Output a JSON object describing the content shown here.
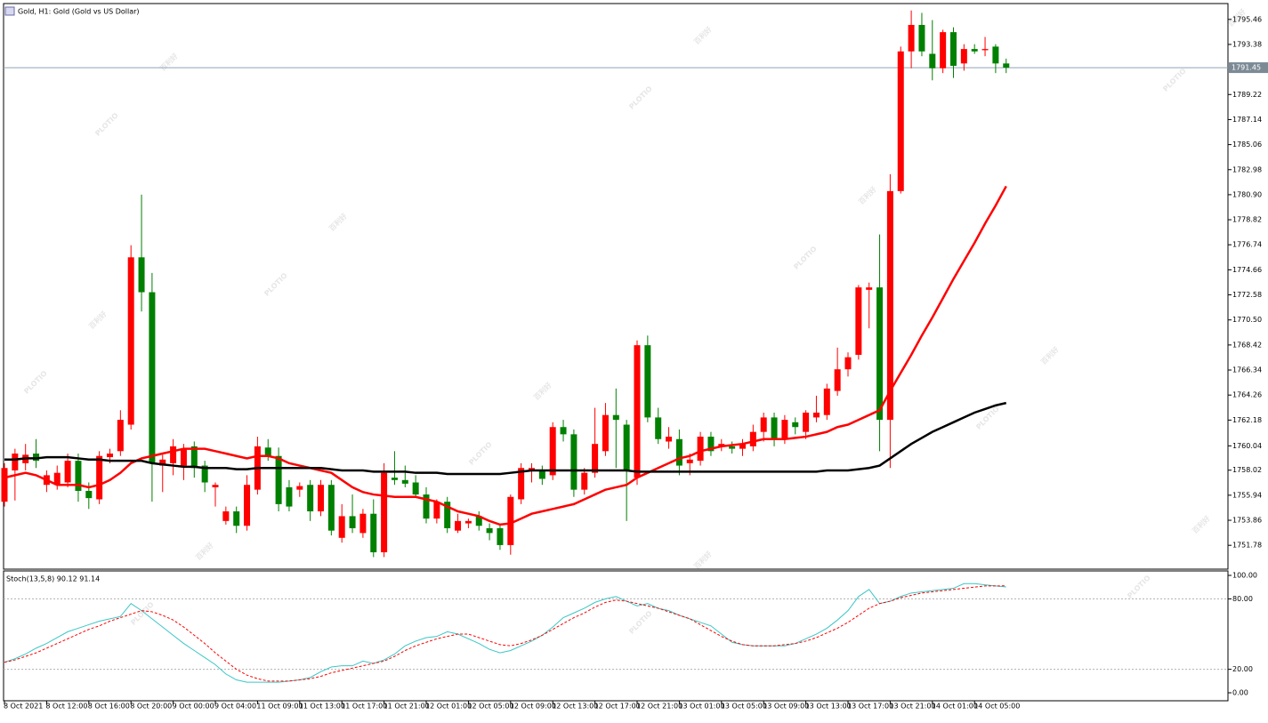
{
  "chart_data": [
    {
      "type": "candlestick",
      "title": "Gold, H1:  Gold (Gold vs US Dollar)",
      "categories": [
        "8 Oct 2021",
        null,
        null,
        null,
        "8 Oct 12:00",
        null,
        null,
        null,
        "8 Oct 16:00",
        null,
        null,
        null,
        "8 Oct 20:00",
        null,
        null,
        null,
        "9 Oct 00:00",
        null,
        null,
        null,
        "9 Oct 04:00",
        null,
        null,
        null,
        "11 Oct 09:00",
        null,
        null,
        null,
        "11 Oct 13:00",
        null,
        null,
        null,
        "11 Oct 17:00",
        null,
        null,
        null,
        "11 Oct 21:00",
        null,
        null,
        null,
        "12 Oct 01:00",
        null,
        null,
        null,
        "12 Oct 05:00",
        null,
        null,
        null,
        "12 Oct 09:00",
        null,
        null,
        null,
        "12 Oct 13:00",
        null,
        null,
        null,
        "12 Oct 17:00",
        null,
        null,
        null,
        "12 Oct 21:00",
        null,
        null,
        null,
        "13 Oct 01:00",
        null,
        null,
        null,
        "13 Oct 05:00",
        null,
        null,
        null,
        "13 Oct 09:00",
        null,
        null,
        null,
        "13 Oct 13:00",
        null,
        null,
        null,
        "13 Oct 17:00",
        null,
        null,
        null,
        "13 Oct 21:00",
        null,
        null,
        null,
        "14 Oct 01:00",
        null,
        null,
        null,
        "14 Oct 05:00",
        null,
        null,
        null
      ],
      "open": [
        1755.4,
        1758.0,
        1758.6,
        1759.4,
        1756.8,
        1756.8,
        1757.0,
        1758.8,
        1756.3,
        1755.6,
        1759.1,
        1759.6,
        1761.8,
        1775.7,
        1772.8,
        1758.4,
        1758.6,
        1758.4,
        1760.0,
        1758.4,
        1756.6,
        1753.8,
        1754.6,
        1753.4,
        1756.4,
        1759.9,
        1759.2,
        1756.6,
        1756.4,
        1756.8,
        1754.6,
        1756.8,
        1752.4,
        1754.2,
        1752.8,
        1754.4,
        1751.2,
        1757.4,
        1757.2,
        1757.0,
        1756.0,
        1754.0,
        1755.4,
        1753.0,
        1753.6,
        1754.2,
        1753.2,
        1753.2,
        1751.8,
        1755.6,
        1758.0,
        1758.0,
        1757.6,
        1761.6,
        1761.0,
        1756.4,
        1757.8,
        1759.6,
        1762.6,
        1761.8,
        1757.4,
        1768.4,
        1762.4,
        1760.4,
        1760.6,
        1758.6,
        1758.8,
        1760.8,
        1760.0,
        1760.0,
        1759.8,
        1760.0,
        1761.2,
        1762.4,
        1760.6,
        1762.0,
        1761.2,
        1762.4,
        1762.6,
        1764.6,
        1766.4,
        1767.6,
        1773.0,
        1773.2,
        1762.2,
        1781.2,
        1792.8,
        1795.0,
        1792.6,
        1791.4,
        1794.4,
        1791.8,
        1793.0,
        1792.9,
        1793.2,
        1791.8
      ],
      "high": [
        1758.6,
        1759.8,
        1760.2,
        1760.6,
        1758.0,
        1758.4,
        1759.4,
        1759.4,
        1757.0,
        1759.6,
        1759.8,
        1763.0,
        1776.7,
        1780.9,
        1774.4,
        1759.3,
        1760.6,
        1760.2,
        1760.4,
        1758.8,
        1757.0,
        1755.0,
        1755.0,
        1757.6,
        1760.8,
        1760.6,
        1759.9,
        1757.2,
        1757.0,
        1757.2,
        1757.2,
        1757.2,
        1755.2,
        1756.0,
        1754.8,
        1755.6,
        1758.6,
        1759.6,
        1758.4,
        1757.6,
        1756.6,
        1755.6,
        1755.8,
        1754.4,
        1754.0,
        1754.6,
        1753.6,
        1753.6,
        1756.0,
        1758.6,
        1758.6,
        1758.4,
        1762.0,
        1762.2,
        1761.4,
        1758.2,
        1763.2,
        1763.6,
        1764.8,
        1762.2,
        1768.8,
        1769.2,
        1763.2,
        1761.6,
        1761.4,
        1759.4,
        1761.2,
        1761.2,
        1760.6,
        1760.4,
        1760.6,
        1761.8,
        1762.8,
        1762.8,
        1762.6,
        1762.4,
        1763.0,
        1764.2,
        1765.2,
        1768.2,
        1767.8,
        1773.4,
        1773.6,
        1777.6,
        1782.6,
        1793.2,
        1796.2,
        1796.0,
        1795.4,
        1794.6,
        1794.8,
        1793.4,
        1793.4,
        1794.0,
        1793.4,
        1792.2
      ],
      "low": [
        1755.0,
        1755.5,
        1758.0,
        1758.2,
        1756.2,
        1756.4,
        1756.6,
        1755.4,
        1754.8,
        1755.2,
        1758.6,
        1759.2,
        1761.4,
        1771.2,
        1755.4,
        1756.2,
        1757.6,
        1757.2,
        1757.4,
        1756.2,
        1755.0,
        1753.5,
        1752.8,
        1753.0,
        1756.0,
        1758.8,
        1754.6,
        1754.6,
        1755.8,
        1753.8,
        1754.2,
        1752.6,
        1752.0,
        1752.8,
        1752.4,
        1750.8,
        1750.8,
        1756.8,
        1756.6,
        1755.8,
        1753.6,
        1753.6,
        1752.8,
        1752.8,
        1753.2,
        1753.0,
        1752.2,
        1751.4,
        1751.0,
        1755.2,
        1757.0,
        1756.8,
        1757.2,
        1760.4,
        1755.8,
        1756.0,
        1757.4,
        1759.2,
        1758.2,
        1753.8,
        1756.8,
        1762.0,
        1760.2,
        1759.8,
        1757.6,
        1757.6,
        1758.4,
        1759.2,
        1759.6,
        1759.4,
        1759.2,
        1759.6,
        1760.4,
        1760.0,
        1760.2,
        1761.0,
        1760.6,
        1762.0,
        1762.2,
        1764.2,
        1765.8,
        1767.2,
        1769.8,
        1759.6,
        1758.2,
        1781.0,
        1791.4,
        1792.4,
        1790.4,
        1791.0,
        1790.6,
        1791.2,
        1792.6,
        1792.4,
        1791.0,
        1791.0
      ],
      "close": [
        1758.2,
        1759.4,
        1759.3,
        1758.8,
        1757.6,
        1757.8,
        1758.8,
        1756.3,
        1755.7,
        1759.2,
        1759.4,
        1762.2,
        1775.7,
        1772.8,
        1758.6,
        1758.9,
        1760.0,
        1759.8,
        1758.2,
        1757.0,
        1756.8,
        1754.6,
        1753.4,
        1756.8,
        1760.0,
        1759.2,
        1755.2,
        1755.0,
        1756.7,
        1754.6,
        1756.8,
        1753.0,
        1754.2,
        1753.2,
        1754.4,
        1751.2,
        1757.8,
        1757.2,
        1756.9,
        1756.0,
        1754.0,
        1755.4,
        1753.2,
        1753.8,
        1753.8,
        1753.4,
        1752.8,
        1751.8,
        1755.8,
        1758.2,
        1758.2,
        1757.3,
        1761.6,
        1761.0,
        1756.4,
        1757.8,
        1760.2,
        1762.6,
        1762.2,
        1758.0,
        1768.4,
        1762.4,
        1760.6,
        1760.8,
        1758.4,
        1758.9,
        1760.8,
        1759.6,
        1760.2,
        1759.8,
        1760.2,
        1761.2,
        1762.4,
        1760.6,
        1762.2,
        1761.6,
        1762.8,
        1762.8,
        1764.8,
        1766.4,
        1767.4,
        1773.2,
        1773.2,
        1762.2,
        1781.2,
        1792.8,
        1795.0,
        1792.8,
        1791.4,
        1794.4,
        1791.6,
        1793.0,
        1792.8,
        1793.0,
        1791.8,
        1791.45
      ],
      "up_color": "#ff0000",
      "down_color": "#008000",
      "overlays": [
        {
          "color": "#ff0000",
          "values": [
            1757.4,
            1757.6,
            1757.8,
            1757.6,
            1757.2,
            1756.8,
            1756.8,
            1756.8,
            1756.6,
            1756.8,
            1757.2,
            1757.8,
            1758.6,
            1759.0,
            1759.2,
            1759.4,
            1759.6,
            1759.8,
            1759.8,
            1759.8,
            1759.6,
            1759.4,
            1759.2,
            1759.0,
            1759.2,
            1759.2,
            1759.0,
            1758.6,
            1758.4,
            1758.2,
            1758.0,
            1757.8,
            1757.2,
            1756.6,
            1756.2,
            1756.0,
            1755.9,
            1755.8,
            1755.8,
            1755.8,
            1755.6,
            1755.4,
            1755.0,
            1754.6,
            1754.4,
            1754.2,
            1753.8,
            1753.5,
            1753.6,
            1754.0,
            1754.4,
            1754.6,
            1754.8,
            1755.0,
            1755.2,
            1755.6,
            1756.0,
            1756.4,
            1756.6,
            1756.8,
            1757.4,
            1757.8,
            1758.2,
            1758.6,
            1759.0,
            1759.2,
            1759.6,
            1759.8,
            1760.0,
            1760.1,
            1760.2,
            1760.4,
            1760.6,
            1760.6,
            1760.6,
            1760.7,
            1760.8,
            1761.0,
            1761.2,
            1761.6,
            1761.8,
            1762.2,
            1762.6,
            1763.0,
            1764.6,
            1766.1,
            1767.6,
            1769.2,
            1770.7,
            1772.3,
            1773.9,
            1775.4,
            1776.9,
            1778.5,
            1780.0,
            1781.6
          ]
        },
        {
          "color": "#000000",
          "values": [
            1758.9,
            1758.9,
            1759.0,
            1759.0,
            1759.1,
            1759.1,
            1759.1,
            1759.0,
            1758.9,
            1758.9,
            1758.8,
            1758.8,
            1758.8,
            1758.8,
            1758.6,
            1758.5,
            1758.4,
            1758.3,
            1758.3,
            1758.2,
            1758.2,
            1758.2,
            1758.1,
            1758.1,
            1758.2,
            1758.2,
            1758.2,
            1758.2,
            1758.2,
            1758.2,
            1758.2,
            1758.1,
            1758.0,
            1758.0,
            1758.0,
            1757.9,
            1757.9,
            1757.9,
            1757.9,
            1757.8,
            1757.8,
            1757.8,
            1757.7,
            1757.7,
            1757.7,
            1757.7,
            1757.7,
            1757.7,
            1757.8,
            1757.9,
            1758.0,
            1758.0,
            1758.0,
            1758.0,
            1758.0,
            1758.0,
            1758.0,
            1758.0,
            1758.0,
            1758.0,
            1757.9,
            1757.9,
            1757.9,
            1757.9,
            1757.9,
            1757.9,
            1757.9,
            1757.9,
            1757.9,
            1757.9,
            1757.9,
            1757.9,
            1757.9,
            1757.9,
            1757.9,
            1757.9,
            1757.9,
            1757.9,
            1758.0,
            1758.0,
            1758.0,
            1758.1,
            1758.2,
            1758.4,
            1759.0,
            1759.6,
            1760.2,
            1760.7,
            1761.2,
            1761.6,
            1762.0,
            1762.4,
            1762.8,
            1763.1,
            1763.4,
            1763.6
          ]
        }
      ],
      "last_price": 1791.45,
      "last_price_color": "#8fa3b8",
      "ylim": [
        1749.8,
        1796.7
      ],
      "yticks": [
        1751.78,
        1753.86,
        1755.94,
        1758.02,
        1760.04,
        1762.18,
        1764.26,
        1766.34,
        1768.42,
        {
          "value": 1770.5,
          "label": "1770.50"
        },
        1772.58,
        1774.66,
        1776.74,
        1778.82,
        {
          "value": 1780.9,
          "label": "1780.90"
        },
        1782.98,
        1785.06,
        1787.14,
        1789.22,
        1793.38,
        1795.46
      ]
    },
    {
      "type": "line",
      "title": "Stoch(13,5,8) 90.12 91.14",
      "series": [
        {
          "color": "#3cc6c6",
          "dash": false,
          "values": [
            26,
            29,
            33,
            38,
            42,
            47,
            52,
            55,
            58,
            61,
            63,
            65,
            76,
            70,
            63,
            56,
            49,
            42,
            36,
            30,
            24,
            16,
            11,
            9,
            9,
            9,
            9,
            10,
            11,
            13,
            18,
            22,
            23,
            23,
            27,
            25,
            28,
            33,
            40,
            44,
            47,
            48,
            52,
            50,
            46,
            42,
            37,
            34,
            36,
            40,
            44,
            49,
            56,
            64,
            68,
            72,
            77,
            80,
            82,
            78,
            74,
            76,
            72,
            70,
            66,
            63,
            60,
            57,
            50,
            43,
            41,
            40,
            40,
            40,
            40,
            42,
            46,
            50,
            55,
            62,
            70,
            82,
            88,
            76,
            78,
            82,
            85,
            86,
            87,
            88,
            89,
            93,
            93,
            92,
            91,
            90.12
          ]
        },
        {
          "color": "#ff0000",
          "dash": true,
          "values": [
            26,
            28,
            31,
            34,
            38,
            42,
            46,
            50,
            54,
            57,
            61,
            64,
            67,
            70,
            69,
            66,
            62,
            56,
            49,
            42,
            34,
            27,
            20,
            15,
            12,
            10,
            10,
            10,
            11,
            12,
            14,
            17,
            19,
            21,
            23,
            25,
            27,
            31,
            36,
            40,
            43,
            46,
            48,
            50,
            50,
            47,
            44,
            41,
            40,
            42,
            45,
            49,
            54,
            59,
            64,
            68,
            73,
            77,
            79,
            78,
            76,
            74,
            72,
            69,
            66,
            63,
            58,
            53,
            48,
            44,
            41,
            40,
            40,
            40,
            41,
            42,
            44,
            47,
            51,
            55,
            60,
            66,
            72,
            76,
            78,
            81,
            83,
            85,
            86,
            87,
            88,
            89,
            90,
            91,
            91,
            91.14
          ]
        }
      ],
      "levels": [
        20,
        80
      ],
      "ylim": [
        -6.8,
        103.8
      ],
      "yticks": [
        {
          "value": 0,
          "label": "0.00"
        },
        {
          "value": 20,
          "label": "20.00"
        },
        {
          "value": 80,
          "label": "80.00"
        },
        {
          "value": 100,
          "label": "100.00"
        }
      ]
    }
  ],
  "watermark": {
    "logo": "PLOTIO",
    "text": "百利好"
  }
}
